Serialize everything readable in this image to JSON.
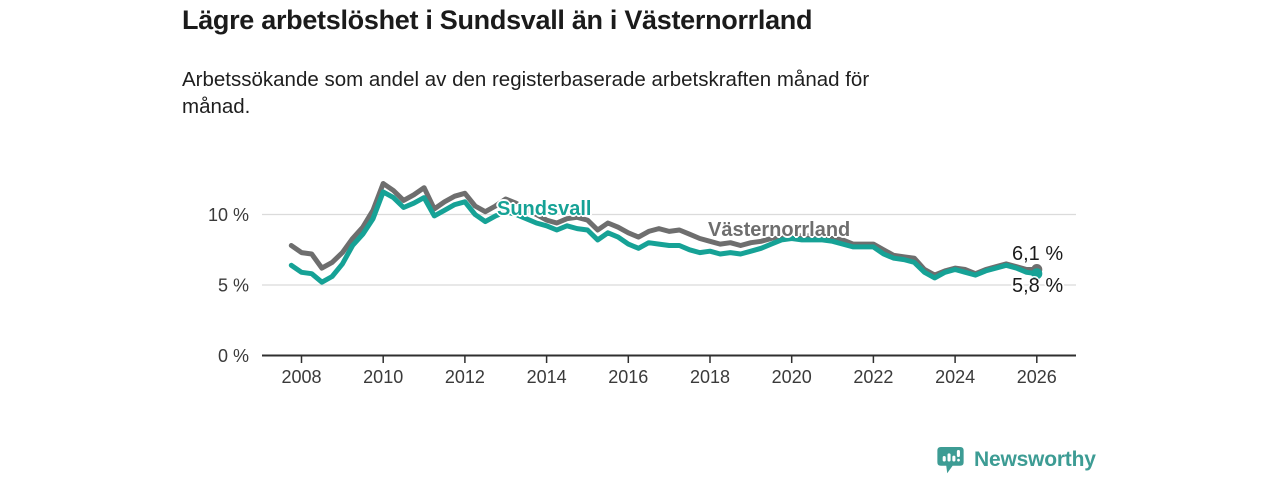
{
  "title": "Lägre arbetslöshet i Sundsvall än i Västernorrland",
  "subtitle": "Arbetssökande som andel av den registerbaserade arbetskraften månad för\nmånad.",
  "branding": {
    "logo_text": "Newsworthy",
    "logo_color": "#3d9c94"
  },
  "chart_data": {
    "type": "line",
    "title": "Lägre arbetslöshet i Sundsvall än i Västernorrland",
    "subtitle": "Arbetssökande som andel av den registerbaserade arbetskraften månad för månad.",
    "unit": "percent",
    "grid": "horizontal",
    "legend_position": "inline-labels",
    "x_axis": {
      "min": 2007.6,
      "max": 2026.7,
      "ticks": [
        2008,
        2010,
        2012,
        2014,
        2016,
        2018,
        2020,
        2022,
        2024,
        2026
      ]
    },
    "y_axis": {
      "min": 0,
      "max": 13.5,
      "ticks": [
        {
          "value": 0,
          "label": "0 %"
        },
        {
          "value": 5,
          "label": "5 %"
        },
        {
          "value": 10,
          "label": "10 %"
        }
      ]
    },
    "x": [
      2007.75,
      2008,
      2008.25,
      2008.5,
      2008.75,
      2009,
      2009.25,
      2009.5,
      2009.75,
      2010,
      2010.25,
      2010.5,
      2010.75,
      2011,
      2011.25,
      2011.5,
      2011.75,
      2012,
      2012.25,
      2012.5,
      2012.75,
      2013,
      2013.25,
      2013.5,
      2013.75,
      2014,
      2014.25,
      2014.5,
      2014.75,
      2015,
      2015.25,
      2015.5,
      2015.75,
      2016,
      2016.25,
      2016.5,
      2016.75,
      2017,
      2017.25,
      2017.5,
      2017.75,
      2018,
      2018.25,
      2018.5,
      2018.75,
      2019,
      2019.25,
      2019.5,
      2019.75,
      2020,
      2020.25,
      2020.5,
      2020.75,
      2021,
      2021.25,
      2021.5,
      2021.75,
      2022,
      2022.25,
      2022.5,
      2022.75,
      2023,
      2023.25,
      2023.5,
      2023.75,
      2024,
      2024.25,
      2024.5,
      2024.75,
      2025,
      2025.25,
      2025.5,
      2025.75,
      2026
    ],
    "series": [
      {
        "id": "vasternorrland",
        "name": "Västernorrland",
        "color": "#6e6e6e",
        "end_label": "6,1 %",
        "end_value": 6.1,
        "values": [
          7.8,
          7.3,
          7.2,
          6.2,
          6.6,
          7.3,
          8.3,
          9.1,
          10.3,
          12.2,
          11.7,
          11.0,
          11.4,
          11.9,
          10.4,
          10.9,
          11.3,
          11.5,
          10.6,
          10.2,
          10.6,
          11.1,
          10.8,
          10.4,
          10.0,
          9.6,
          9.4,
          9.7,
          9.8,
          9.6,
          8.9,
          9.4,
          9.1,
          8.7,
          8.4,
          8.8,
          9.0,
          8.8,
          8.9,
          8.6,
          8.3,
          8.1,
          7.9,
          8.0,
          7.8,
          8.0,
          8.1,
          8.3,
          8.5,
          8.5,
          8.5,
          8.5,
          8.4,
          8.3,
          8.2,
          7.9,
          7.9,
          7.9,
          7.5,
          7.1,
          7.0,
          6.9,
          6.1,
          5.7,
          6.0,
          6.2,
          6.1,
          5.8,
          6.1,
          6.3,
          6.5,
          6.3,
          6.1,
          6.1
        ]
      },
      {
        "id": "sundsvall",
        "name": "Sundsvall",
        "color": "#16a296",
        "end_label": "5,8 %",
        "end_value": 5.8,
        "values": [
          6.4,
          5.9,
          5.8,
          5.2,
          5.6,
          6.5,
          7.8,
          8.6,
          9.7,
          11.6,
          11.2,
          10.5,
          10.8,
          11.2,
          9.9,
          10.3,
          10.7,
          10.9,
          10.0,
          9.5,
          9.9,
          10.2,
          10.0,
          9.7,
          9.4,
          9.2,
          8.9,
          9.2,
          9.0,
          8.9,
          8.2,
          8.7,
          8.4,
          7.9,
          7.6,
          8.0,
          7.9,
          7.8,
          7.8,
          7.5,
          7.3,
          7.4,
          7.2,
          7.3,
          7.2,
          7.4,
          7.6,
          7.9,
          8.2,
          8.3,
          8.2,
          8.2,
          8.2,
          8.1,
          7.9,
          7.7,
          7.7,
          7.7,
          7.2,
          6.9,
          6.8,
          6.6,
          5.9,
          5.5,
          5.9,
          6.1,
          5.9,
          5.7,
          6.0,
          6.2,
          6.4,
          6.2,
          5.9,
          5.8
        ]
      }
    ]
  }
}
